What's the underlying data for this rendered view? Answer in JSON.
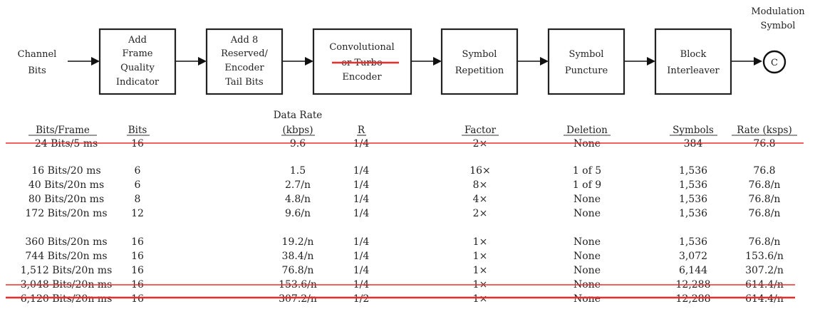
{
  "diagram": {
    "input_label": [
      "Channel",
      "Bits"
    ],
    "output_label": [
      "Modulation",
      "Symbol"
    ],
    "output_node": "C",
    "blocks": [
      {
        "lines": [
          "Add",
          "Frame",
          "Quality",
          "Indicator"
        ]
      },
      {
        "lines": [
          "Add 8",
          "Reserved/",
          "Encoder",
          "Tail Bits"
        ]
      },
      {
        "lines": [
          "Convolutional",
          "or Turbo",
          "Encoder"
        ]
      },
      {
        "lines": [
          "Symbol",
          "Repetition"
        ]
      },
      {
        "lines": [
          "Symbol",
          "Puncture"
        ]
      },
      {
        "lines": [
          "Block",
          "Interleaver"
        ]
      }
    ]
  },
  "table": {
    "headers": {
      "bits_frame": "Bits/Frame",
      "bits": "Bits",
      "data_rate_top": "Data Rate",
      "data_rate": "(kbps)",
      "r": "R",
      "factor": "Factor",
      "deletion": "Deletion",
      "symbols": "Symbols",
      "rate": "Rate (ksps)"
    },
    "rows": [
      [
        "24 Bits/5 ms",
        "16",
        "9.6",
        "1/4",
        "2×",
        "None",
        "384",
        "76.8"
      ],
      [
        "16 Bits/20 ms",
        "6",
        "1.5",
        "1/4",
        "16×",
        "1 of 5",
        "1,536",
        "76.8"
      ],
      [
        "40 Bits/20n ms",
        "6",
        "2.7/n",
        "1/4",
        "8×",
        "1 of 9",
        "1,536",
        "76.8/n"
      ],
      [
        "80 Bits/20n ms",
        "8",
        "4.8/n",
        "1/4",
        "4×",
        "None",
        "1,536",
        "76.8/n"
      ],
      [
        "172 Bits/20n ms",
        "12",
        "9.6/n",
        "1/4",
        "2×",
        "None",
        "1,536",
        "76.8/n"
      ],
      [
        "360 Bits/20n ms",
        "16",
        "19.2/n",
        "1/4",
        "1×",
        "None",
        "1,536",
        "76.8/n"
      ],
      [
        "744 Bits/20n ms",
        "16",
        "38.4/n",
        "1/4",
        "1×",
        "None",
        "3,072",
        "153.6/n"
      ],
      [
        "1,512 Bits/20n ms",
        "16",
        "76.8/n",
        "1/4",
        "1×",
        "None",
        "6,144",
        "307.2/n"
      ],
      [
        "3,048 Bits/20n ms",
        "16",
        "153.6/n",
        "1/4",
        "1×",
        "None",
        "12,288",
        "614.4/n"
      ],
      [
        "6,120 Bits/20n ms",
        "16",
        "307.2/n",
        "1/2",
        "1×",
        "None",
        "12,288",
        "614.4/n"
      ]
    ]
  }
}
